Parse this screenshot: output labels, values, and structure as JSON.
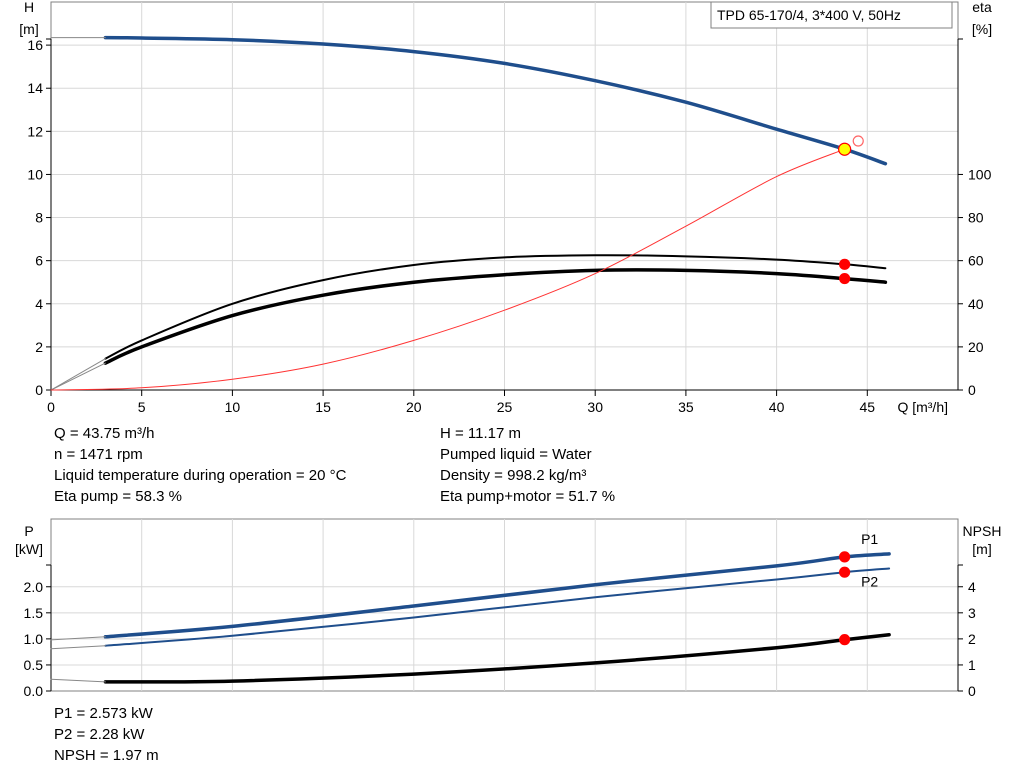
{
  "chart_data": [
    {
      "type": "line",
      "title": "TPD 65-170/4, 3*400 V, 50Hz",
      "xlabel": "Q [m³/h]",
      "ylabel_left": [
        "H",
        "[m]"
      ],
      "ylabel_right": [
        "eta",
        "[%]"
      ],
      "xlim": [
        0,
        50
      ],
      "ylim_left": [
        0,
        18
      ],
      "ylim_right": [
        0,
        180
      ],
      "x_ticks": [
        "0",
        "5",
        "10",
        "15",
        "20",
        "25",
        "30",
        "35",
        "40",
        "45"
      ],
      "y_ticks_left": [
        "0",
        "2",
        "4",
        "6",
        "8",
        "10",
        "12",
        "14",
        "16"
      ],
      "y_ticks_right": [
        "0",
        "20",
        "40",
        "60",
        "80",
        "100"
      ],
      "grid": true,
      "series": [
        {
          "axis": "left",
          "color": "#1f4e8c",
          "width": 3.5,
          "x": [
            3,
            5,
            10,
            15,
            20,
            25,
            30,
            35,
            40,
            43.75,
            46
          ],
          "y": [
            16.35,
            16.33,
            16.25,
            16.05,
            15.7,
            15.15,
            14.35,
            13.35,
            12.1,
            11.17,
            10.5
          ]
        },
        {
          "axis": "left",
          "color": "#1f4e8c",
          "width": 1,
          "dim": true,
          "x": [
            0,
            3
          ],
          "y": [
            16.35,
            16.35
          ]
        },
        {
          "axis": "right",
          "color": "#000000",
          "width": 2,
          "x": [
            3,
            5,
            10,
            15,
            20,
            25,
            30,
            35,
            40,
            43.75,
            46
          ],
          "y": [
            14.5,
            23,
            40,
            51,
            58,
            61.5,
            62.5,
            62,
            60.5,
            58.3,
            56.5
          ]
        },
        {
          "axis": "right",
          "color": "#000000",
          "width": 3.5,
          "x": [
            3,
            5,
            10,
            15,
            20,
            25,
            30,
            35,
            40,
            43.75,
            46
          ],
          "y": [
            12.5,
            20,
            34.5,
            44,
            50,
            53.5,
            55.5,
            55.5,
            54,
            51.7,
            50
          ]
        },
        {
          "axis": "right",
          "color": "#000000",
          "width": 1,
          "dim": true,
          "x": [
            0,
            3
          ],
          "y": [
            0,
            14.5
          ]
        },
        {
          "axis": "right",
          "color": "#000000",
          "width": 1,
          "dim": true,
          "x": [
            0,
            3
          ],
          "y": [
            0,
            12.5
          ]
        },
        {
          "axis": "left",
          "color": "#ff3333",
          "width": 1,
          "x": [
            0,
            5,
            10,
            15,
            20,
            25,
            30,
            35,
            40,
            43.75
          ],
          "y": [
            0,
            0.1,
            0.5,
            1.2,
            2.3,
            3.7,
            5.4,
            7.6,
            9.9,
            11.17
          ]
        }
      ],
      "markers": [
        {
          "axis": "left",
          "x": 43.75,
          "y": 11.17,
          "fill": "#ffff00",
          "stroke": "#ff0000",
          "r": 6
        },
        {
          "axis": "left",
          "x": 44.5,
          "y": 11.55,
          "fill": "none",
          "stroke": "#ff6666",
          "r": 5
        },
        {
          "axis": "right",
          "x": 43.75,
          "y": 58.3,
          "fill": "#ff0000",
          "stroke": "#ff0000",
          "r": 5
        },
        {
          "axis": "right",
          "x": 43.75,
          "y": 51.7,
          "fill": "#ff0000",
          "stroke": "#ff0000",
          "r": 5
        }
      ]
    },
    {
      "type": "line",
      "ylabel_left": [
        "P",
        "[kW]"
      ],
      "ylabel_right": [
        "NPSH",
        "[m]"
      ],
      "xlim": [
        0,
        50
      ],
      "ylim_left": [
        0,
        3.3
      ],
      "ylim_right": [
        0,
        6.6
      ],
      "y_ticks_left": [
        "0.0",
        "0.5",
        "1.0",
        "1.5",
        "2.0"
      ],
      "y_ticks_right": [
        "0",
        "1",
        "2",
        "3",
        "4"
      ],
      "grid": true,
      "series": [
        {
          "name": "P1",
          "axis": "left",
          "color": "#1f4e8c",
          "width": 3.5,
          "x": [
            3,
            10,
            20,
            30,
            40,
            43.75,
            46.2
          ],
          "y": [
            1.04,
            1.24,
            1.63,
            2.04,
            2.4,
            2.573,
            2.63
          ]
        },
        {
          "name": "P2",
          "axis": "left",
          "color": "#1f4e8c",
          "width": 2,
          "x": [
            3,
            10,
            20,
            30,
            40,
            43.75,
            46.2
          ],
          "y": [
            0.87,
            1.06,
            1.41,
            1.8,
            2.14,
            2.28,
            2.35
          ]
        },
        {
          "axis": "left",
          "color": "#1f4e8c",
          "width": 1,
          "dim": true,
          "x": [
            0,
            3
          ],
          "y": [
            0.98,
            1.04
          ]
        },
        {
          "axis": "left",
          "color": "#1f4e8c",
          "width": 1,
          "dim": true,
          "x": [
            0,
            3
          ],
          "y": [
            0.81,
            0.87
          ]
        },
        {
          "axis": "right",
          "color": "#000000",
          "width": 3.5,
          "x": [
            3,
            10,
            20,
            30,
            40,
            43.75,
            46.2
          ],
          "y": [
            0.35,
            0.38,
            0.65,
            1.08,
            1.66,
            1.97,
            2.16
          ]
        },
        {
          "axis": "right",
          "color": "#000000",
          "width": 1,
          "dim": true,
          "x": [
            0,
            3
          ],
          "y": [
            0.45,
            0.35
          ]
        }
      ],
      "markers": [
        {
          "axis": "left",
          "x": 43.75,
          "y": 2.573,
          "fill": "#ff0000",
          "stroke": "#ff0000",
          "r": 5
        },
        {
          "axis": "left",
          "x": 43.75,
          "y": 2.28,
          "fill": "#ff0000",
          "stroke": "#ff0000",
          "r": 5
        },
        {
          "axis": "right",
          "x": 43.75,
          "y": 1.97,
          "fill": "#ff0000",
          "stroke": "#ff0000",
          "r": 5
        }
      ]
    }
  ],
  "info_top_left": [
    "Q = 43.75 m³/h",
    "n = 1471 rpm",
    "Liquid temperature during operation = 20 °C",
    "Eta pump = 58.3 %"
  ],
  "info_top_right": [
    "H = 11.17 m",
    "Pumped liquid = Water",
    "Density = 998.2 kg/m³",
    "Eta pump+motor = 51.7 %"
  ],
  "info_bottom": [
    "P1 = 2.573 kW",
    "P2 = 2.28 kW",
    "NPSH = 1.97 m"
  ]
}
